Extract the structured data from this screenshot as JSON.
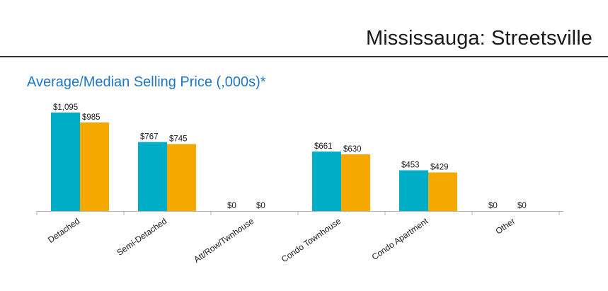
{
  "header": {
    "title": "Mississauga: Streetsville"
  },
  "colors": {
    "title": "#1f77c9",
    "average": "#00adc6",
    "median": "#f5a800",
    "axis": "#b0b0b0"
  },
  "chart_data": {
    "type": "bar",
    "title": "Average/Median Selling Price (,000s)*",
    "categories": [
      "Detached",
      "Semi-Detached",
      "Att/Row/Twnhouse",
      "Condo Townhouse",
      "Condo Apartment",
      "Other"
    ],
    "series": [
      {
        "values": [
          1095,
          767,
          0,
          661,
          453,
          0
        ],
        "labels": [
          "$1,095",
          "$767",
          "$0",
          "$661",
          "$453",
          "$0"
        ]
      },
      {
        "values": [
          985,
          745,
          0,
          630,
          429,
          0
        ],
        "labels": [
          "$985",
          "$745",
          "$0",
          "$630",
          "$429",
          "$0"
        ]
      }
    ],
    "ylim": [
      0,
      1095
    ],
    "grid": false,
    "legend": "none"
  }
}
